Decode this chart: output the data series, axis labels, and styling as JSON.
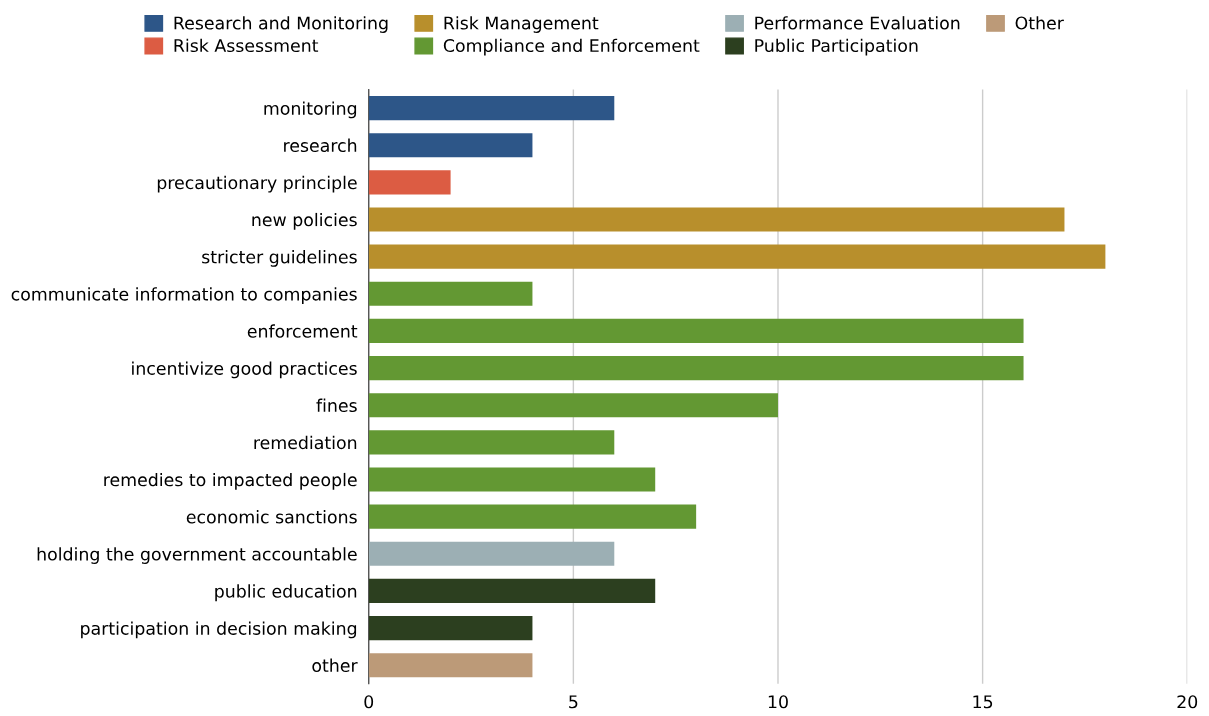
{
  "chart_data": {
    "type": "bar",
    "orientation": "horizontal",
    "categories": [
      "monitoring",
      "research",
      "precautionary principle",
      "new policies",
      "stricter guidelines",
      "communicate information to companies",
      "enforcement",
      "incentivize good practices",
      "fines",
      "remediation",
      "remedies to impacted people",
      "economic sanctions",
      "holding the government accountable",
      "public education",
      "participation in decision making",
      "other"
    ],
    "series": [
      {
        "name": "Research and Monitoring",
        "color": "#2d5688",
        "values": [
          6,
          4,
          null,
          null,
          null,
          null,
          null,
          null,
          null,
          null,
          null,
          null,
          null,
          null,
          null,
          null
        ]
      },
      {
        "name": "Risk Assessment",
        "color": "#dc5c43",
        "values": [
          null,
          null,
          2,
          null,
          null,
          null,
          null,
          null,
          null,
          null,
          null,
          null,
          null,
          null,
          null,
          null
        ]
      },
      {
        "name": "Risk Management",
        "color": "#b88f2c",
        "values": [
          null,
          null,
          null,
          17,
          18,
          null,
          null,
          null,
          null,
          null,
          null,
          null,
          null,
          null,
          null,
          null
        ]
      },
      {
        "name": "Compliance and Enforcement",
        "color": "#639833",
        "values": [
          null,
          null,
          null,
          null,
          null,
          4,
          16,
          16,
          10,
          6,
          7,
          8,
          null,
          null,
          null,
          null
        ]
      },
      {
        "name": "Performance Evaluation",
        "color": "#9cafb4",
        "values": [
          null,
          null,
          null,
          null,
          null,
          null,
          null,
          null,
          null,
          null,
          null,
          null,
          6,
          null,
          null,
          null
        ]
      },
      {
        "name": "Public Participation",
        "color": "#2c3f1f",
        "values": [
          null,
          null,
          null,
          null,
          null,
          null,
          null,
          null,
          null,
          null,
          null,
          null,
          null,
          7,
          4,
          null
        ]
      },
      {
        "name": "Other",
        "color": "#bc9a78",
        "values": [
          null,
          null,
          null,
          null,
          null,
          null,
          null,
          null,
          null,
          null,
          null,
          null,
          null,
          null,
          null,
          4
        ]
      }
    ],
    "xlim": [
      0,
      20
    ],
    "xticks": [
      0,
      5,
      10,
      15,
      20
    ],
    "grid": "x",
    "legend": "top"
  }
}
